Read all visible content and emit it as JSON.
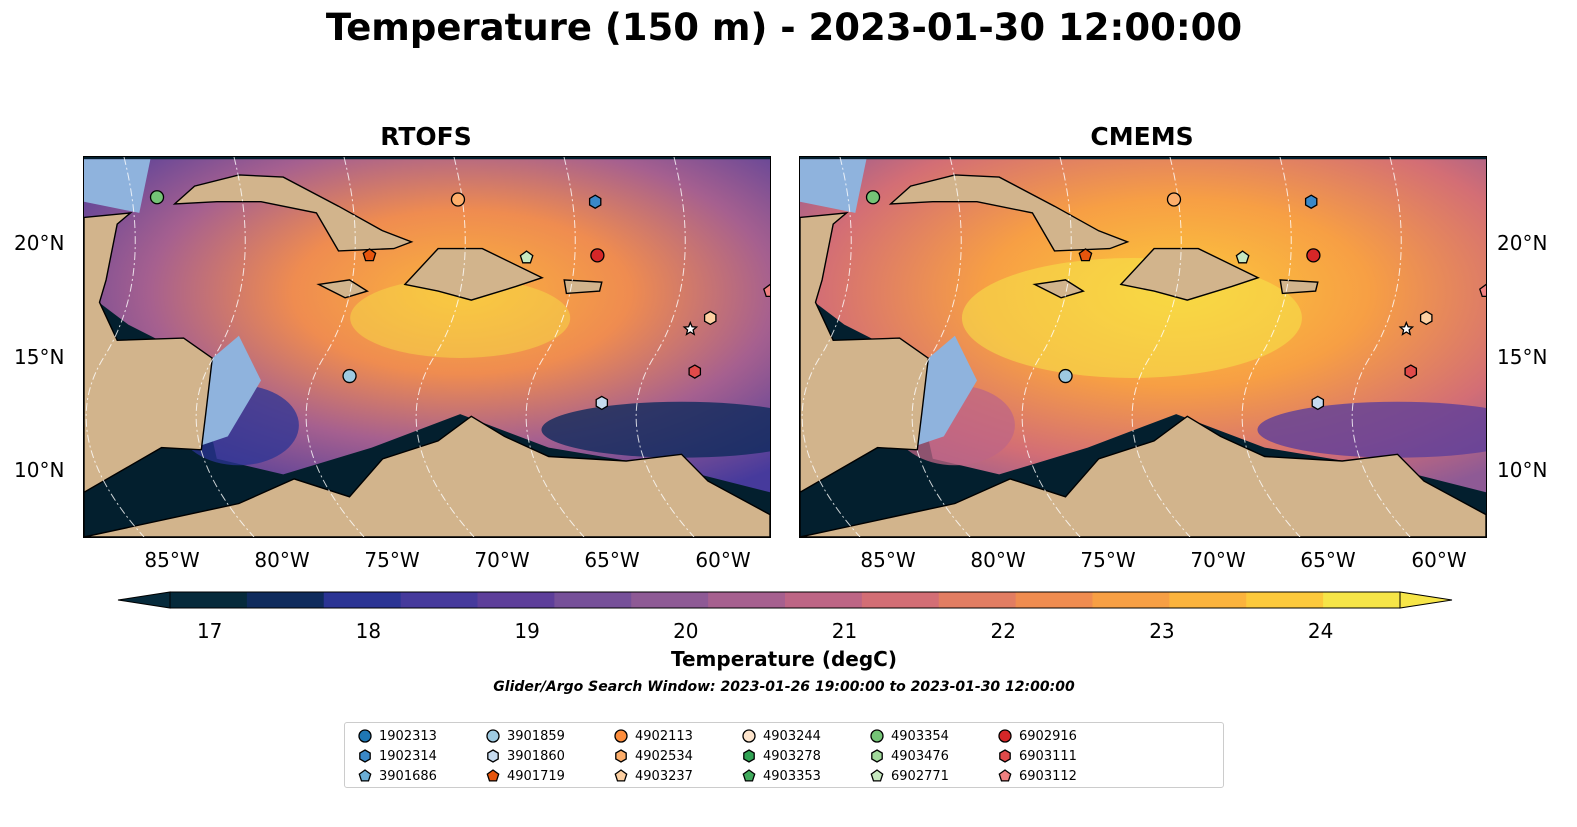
{
  "title": "Temperature (150 m) - 2023-01-30 12:00:00",
  "panels": [
    {
      "title": "RTOFS",
      "warm": 0.45
    },
    {
      "title": "CMEMS",
      "warm": 0.75
    }
  ],
  "lat_labels": [
    "20°N",
    "15°N",
    "10°N"
  ],
  "lon_labels": [
    "85°W",
    "80°W",
    "75°W",
    "70°W",
    "65°W",
    "60°W"
  ],
  "colorbar": {
    "label": "Temperature (degC)",
    "ticks": [
      "17",
      "18",
      "19",
      "20",
      "21",
      "22",
      "23",
      "24"
    ],
    "min": 16.75,
    "max": 24.5,
    "step": 0.5,
    "extend": "both",
    "colormap": [
      "#062a3b",
      "#0f2b5d",
      "#2b3494",
      "#463a9c",
      "#5e3f9a",
      "#765099",
      "#8e5a95",
      "#a6608f",
      "#bd6585",
      "#d36e75",
      "#e27d62",
      "#ef8c50",
      "#f79f44",
      "#fbb33d",
      "#fcc93c",
      "#f6e548"
    ]
  },
  "search_window": "Glider/Argo Search Window: 2023-01-26 19:00:00 to 2023-01-30 12:00:00",
  "legend": [
    {
      "label": "1902313",
      "color": "#1f77b4",
      "marker": "circle"
    },
    {
      "label": "1902314",
      "color": "#3a88c8",
      "marker": "hexagon"
    },
    {
      "label": "3901686",
      "color": "#6baed6",
      "marker": "pentagon"
    },
    {
      "label": "3901859",
      "color": "#9ecae1",
      "marker": "circle"
    },
    {
      "label": "3901860",
      "color": "#c6dbef",
      "marker": "hexagon"
    },
    {
      "label": "4901719",
      "color": "#e6550d",
      "marker": "pentagon"
    },
    {
      "label": "4902113",
      "color": "#fd8d3c",
      "marker": "circle"
    },
    {
      "label": "4902534",
      "color": "#fdae6b",
      "marker": "hexagon"
    },
    {
      "label": "4903237",
      "color": "#fdd0a2",
      "marker": "pentagon"
    },
    {
      "label": "4903244",
      "color": "#fde4cc",
      "marker": "circle"
    },
    {
      "label": "4903278",
      "color": "#31a354",
      "marker": "hexagon"
    },
    {
      "label": "4903353",
      "color": "#41ab5d",
      "marker": "pentagon"
    },
    {
      "label": "4903354",
      "color": "#74c476",
      "marker": "circle"
    },
    {
      "label": "4903476",
      "color": "#a1d99b",
      "marker": "hexagon"
    },
    {
      "label": "6902771",
      "color": "#c7e9c0",
      "marker": "pentagon"
    },
    {
      "label": "6902916",
      "color": "#d62728",
      "marker": "circle"
    },
    {
      "label": "6903111",
      "color": "#e04a4a",
      "marker": "hexagon"
    },
    {
      "label": "6903112",
      "color": "#f08080",
      "marker": "pentagon"
    }
  ],
  "floats": [
    {
      "lon": -85.7,
      "lat": 22.2,
      "color": "#74c476",
      "marker": "circle"
    },
    {
      "lon": -72.1,
      "lat": 22.1,
      "color": "#fdae6b",
      "marker": "circle"
    },
    {
      "lon": -65.9,
      "lat": 22.0,
      "color": "#3a88c8",
      "marker": "hexagon"
    },
    {
      "lon": -76.1,
      "lat": 19.6,
      "color": "#e6550d",
      "marker": "pentagon"
    },
    {
      "lon": -69.0,
      "lat": 19.5,
      "color": "#c7e9c0",
      "marker": "pentagon"
    },
    {
      "lon": -65.8,
      "lat": 19.6,
      "color": "#d62728",
      "marker": "circle"
    },
    {
      "lon": -58.0,
      "lat": 18.0,
      "color": "#f08080",
      "marker": "pentagon"
    },
    {
      "lon": -60.7,
      "lat": 16.8,
      "color": "#fdd0a2",
      "marker": "hexagon"
    },
    {
      "lon": -61.6,
      "lat": 16.3,
      "color": "#ffffff",
      "marker": "star"
    },
    {
      "lon": -77.0,
      "lat": 14.2,
      "color": "#9ecae1",
      "marker": "circle"
    },
    {
      "lon": -61.4,
      "lat": 14.4,
      "color": "#e04a4a",
      "marker": "hexagon"
    },
    {
      "lon": -65.6,
      "lat": 13.0,
      "color": "#c6dbef",
      "marker": "hexagon"
    }
  ]
}
